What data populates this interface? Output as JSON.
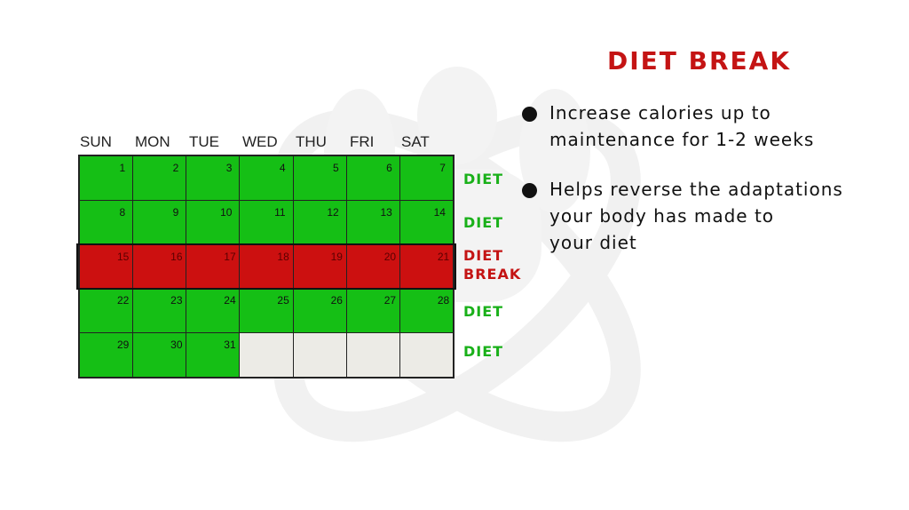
{
  "title": "DIET BREAK",
  "day_headers": [
    "SUN",
    "MON",
    "TUE",
    "WED",
    "THU",
    "FRI",
    "SAT"
  ],
  "calendar": {
    "days": [
      "1",
      "2",
      "3",
      "4",
      "5",
      "6",
      "7",
      "8",
      "9",
      "10",
      "11",
      "12",
      "13",
      "14",
      "15",
      "16",
      "17",
      "18",
      "19",
      "20",
      "21",
      "22",
      "23",
      "24",
      "25",
      "26",
      "27",
      "28",
      "29",
      "30",
      "31"
    ],
    "row_labels": [
      {
        "text": "DIET",
        "color": "#19b019"
      },
      {
        "text": "DIET",
        "color": "#19b019"
      },
      {
        "text": "DIET",
        "text2": "BREAK",
        "color": "#c41414"
      },
      {
        "text": "DIET",
        "color": "#19b019"
      },
      {
        "text": "DIET",
        "color": "#19b019"
      }
    ],
    "colors": {
      "diet": "#15bf15",
      "break": "#cc1010",
      "empty": "#ecebe6"
    }
  },
  "bullets": [
    {
      "line1": "Increase calories up to",
      "line2": "maintenance for 1-2 weeks"
    },
    {
      "line1": "Helps reverse the adaptations",
      "line2": "your body has made to",
      "line3": "your diet"
    }
  ]
}
